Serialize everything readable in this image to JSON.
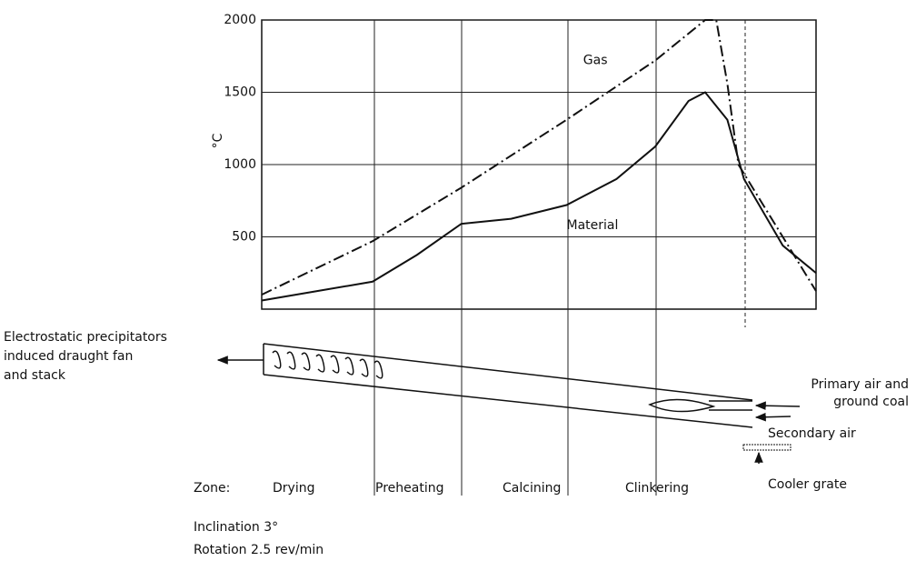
{
  "chart_data": {
    "type": "line",
    "ylabel": "°C",
    "ylim": [
      0,
      2000
    ],
    "yticks": [
      500,
      1000,
      1500,
      2000
    ],
    "xlim": [
      0,
      100
    ],
    "grid": true,
    "series": [
      {
        "name": "Gas",
        "color": "#111111",
        "style": "dashdot",
        "x": [
          0,
          20,
          36,
          55,
          71,
          80,
          82,
          84,
          86,
          92,
          100
        ],
        "values": [
          100,
          470,
          840,
          1310,
          1720,
          2000,
          2000,
          1560,
          1000,
          625,
          125
        ]
      },
      {
        "name": "Material",
        "color": "#111111",
        "style": "solid",
        "x": [
          0,
          10,
          20,
          28,
          36,
          45,
          55,
          64,
          71,
          77,
          80,
          84,
          87,
          94,
          100
        ],
        "values": [
          60,
          125,
          190,
          375,
          590,
          625,
          720,
          900,
          1125,
          1440,
          1500,
          1310,
          900,
          440,
          250
        ]
      }
    ]
  },
  "diagram": {
    "exhaust": [
      "Electrostatic precipitators",
      "induced draught fan",
      "and stack"
    ],
    "primary_air": [
      "Primary air and",
      "ground coal"
    ],
    "secondary_air": "Secondary air",
    "cooler": "Cooler grate",
    "zone_label": "Zone:",
    "zones": [
      "Drying",
      "Preheating",
      "Calcining",
      "Clinkering"
    ],
    "inclination": "Inclination 3°",
    "rotation": "Rotation 2.5 rev/min"
  }
}
